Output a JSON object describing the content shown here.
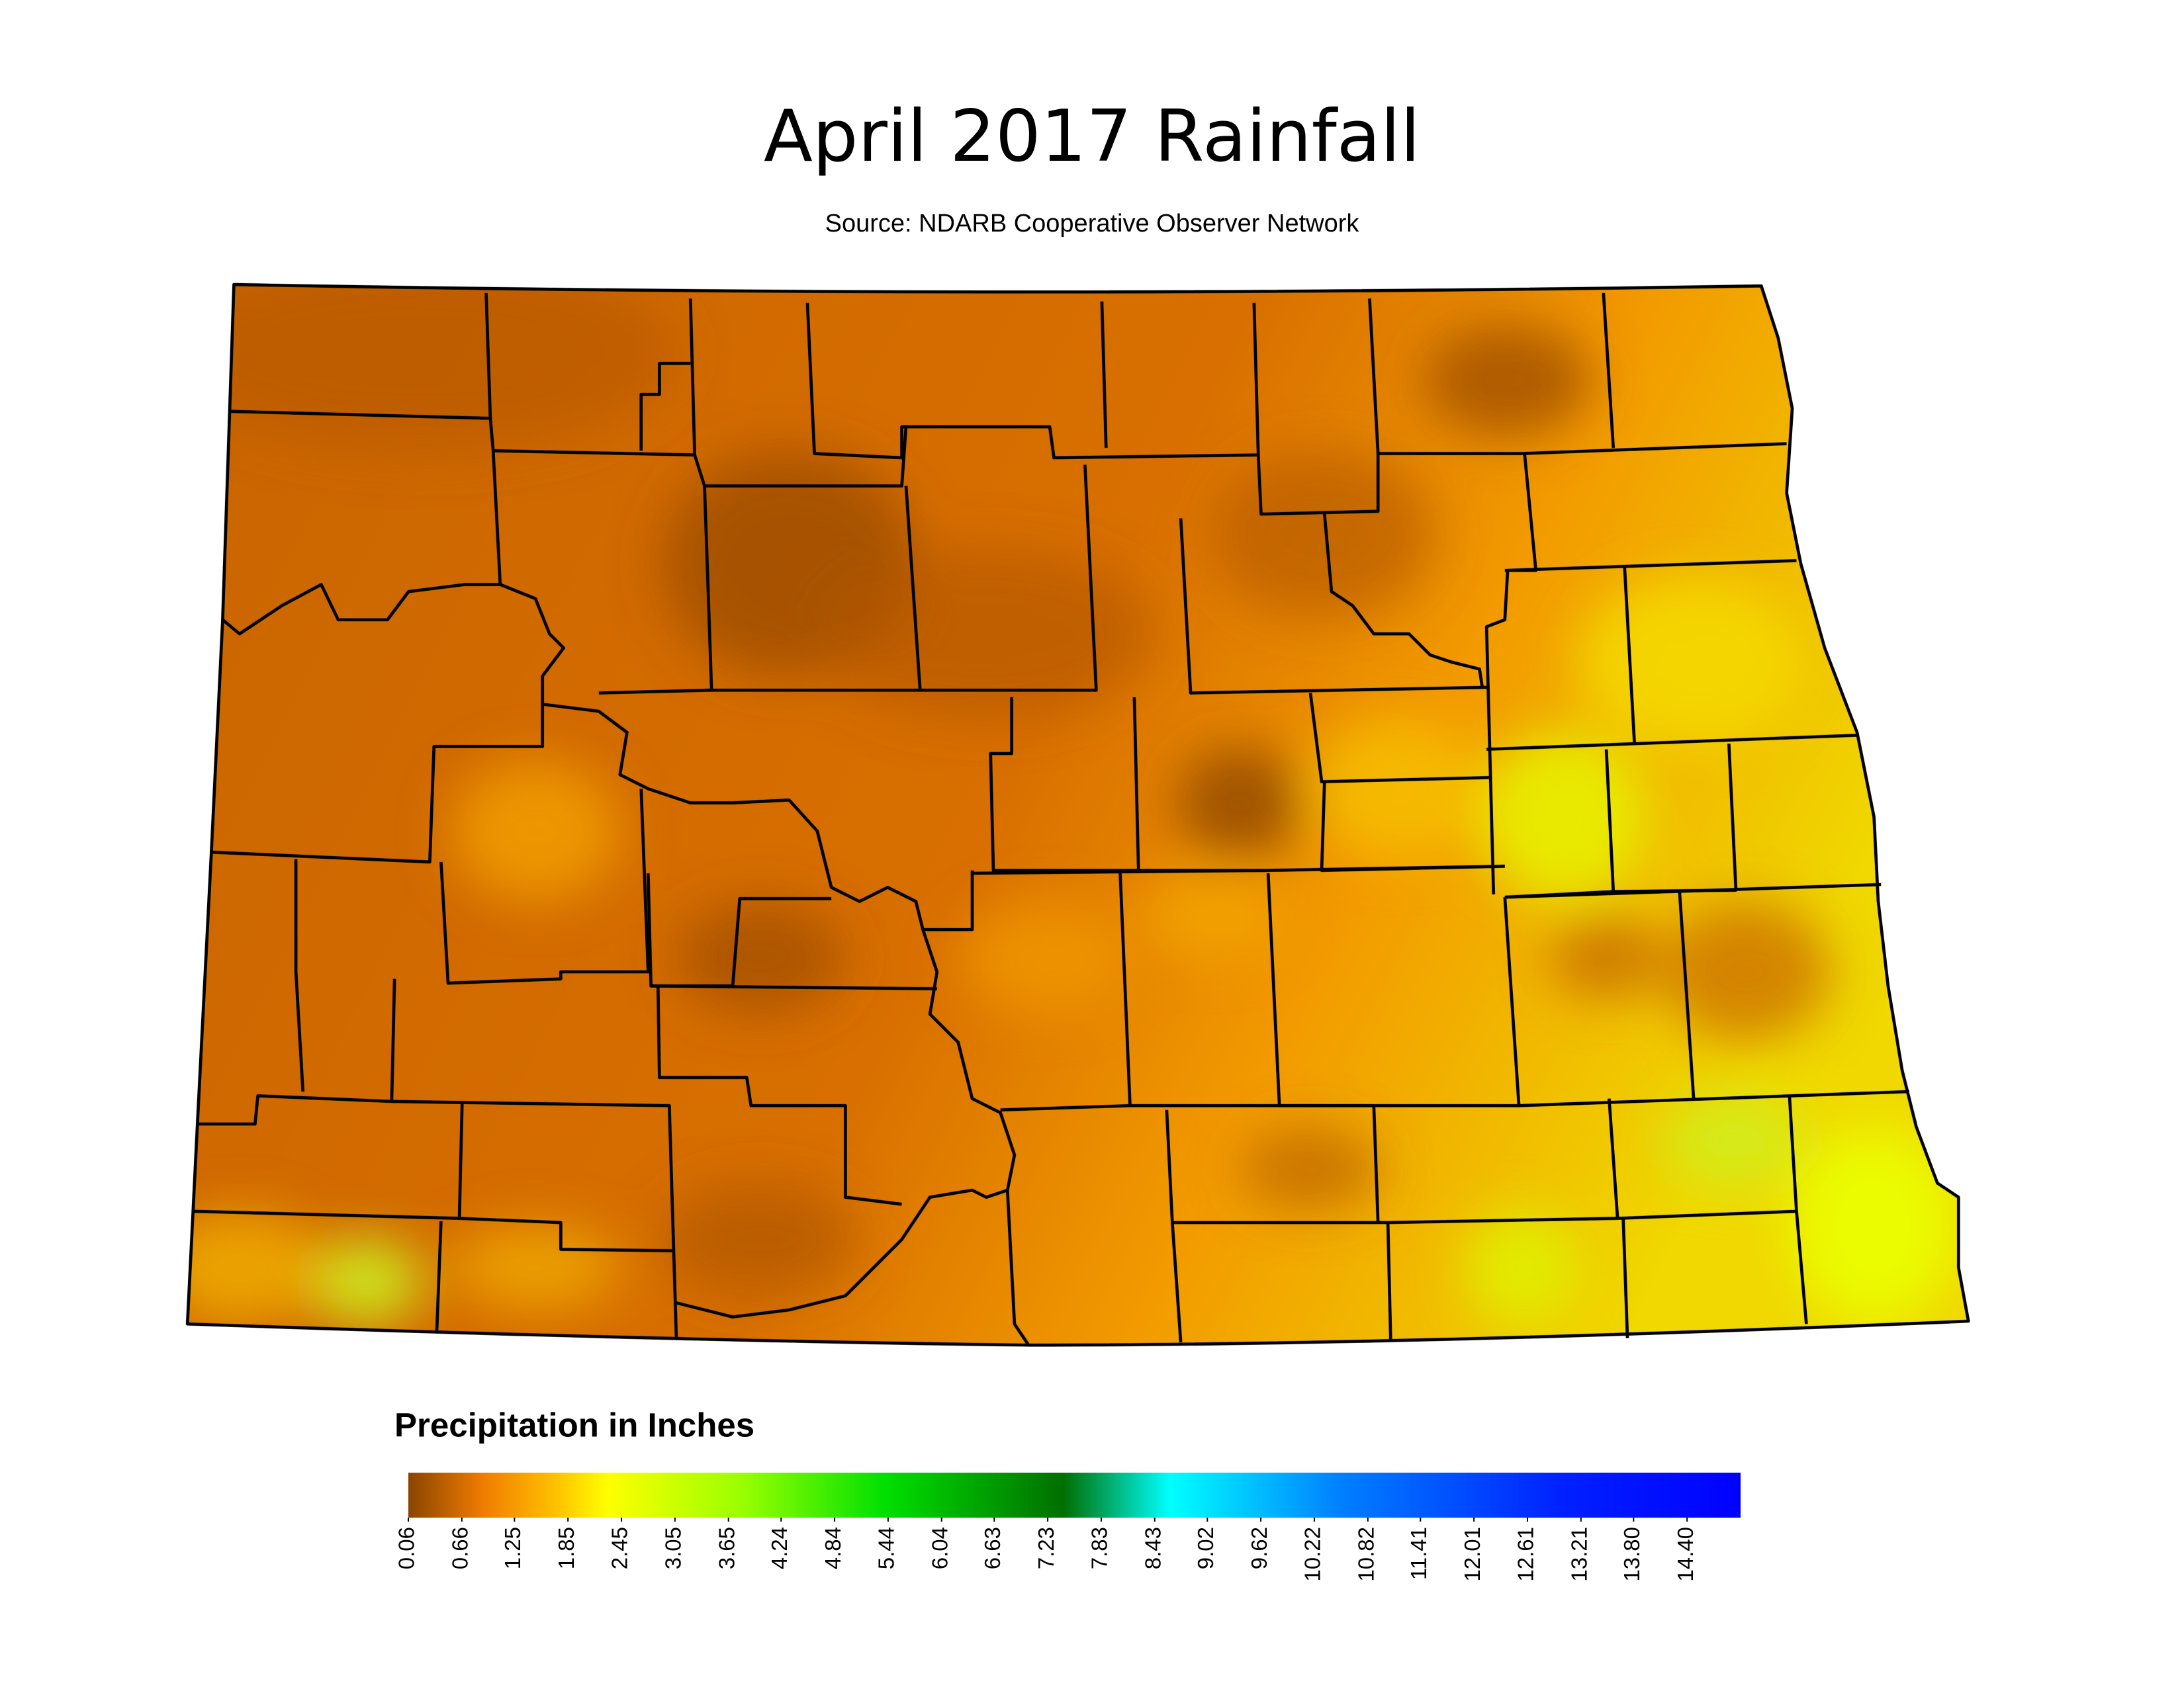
{
  "title": "April 2017 Rainfall",
  "subtitle": "Source: NDARB Cooperative Observer Network",
  "legend": {
    "title": "Precipitation in Inches",
    "lim": [
      0.06,
      15
    ],
    "ticks": [
      0.06,
      0.66,
      1.25,
      1.85,
      2.45,
      3.05,
      3.65,
      4.24,
      4.84,
      5.44,
      6.04,
      6.63,
      7.23,
      7.83,
      8.43,
      9.02,
      9.62,
      10.22,
      10.82,
      11.41,
      12.01,
      12.61,
      13.21,
      {
        "value": 13.8,
        "label": "13.80"
      },
      {
        "value": 14.4,
        "label": "14.40"
      }
    ],
    "color_stops": [
      {
        "value": 0.06,
        "color": "#8a4500"
      },
      {
        "value": 0.9,
        "color": "#f07c00"
      },
      {
        "value": 1.7,
        "color": "#ffc000"
      },
      {
        "value": 2.3,
        "color": "#ffff00"
      },
      {
        "value": 3.8,
        "color": "#99ff00"
      },
      {
        "value": 5.4,
        "color": "#00e000"
      },
      {
        "value": 7.4,
        "color": "#006f00"
      },
      {
        "value": 8.6,
        "color": "#00ffff"
      },
      {
        "value": 10.5,
        "color": "#0080ff"
      },
      {
        "value": 13.0,
        "color": "#0020ff"
      },
      {
        "value": 15,
        "color": "#0000ff"
      }
    ]
  }
}
